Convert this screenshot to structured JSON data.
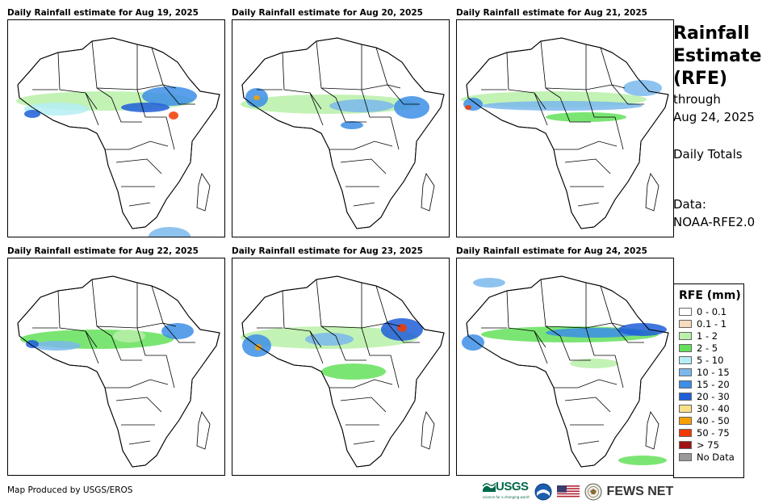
{
  "panels": [
    {
      "title": "Daily Rainfall estimate for Aug 19, 2025"
    },
    {
      "title": "Daily Rainfall estimate for Aug 20, 2025"
    },
    {
      "title": "Daily Rainfall estimate for Aug 21, 2025"
    },
    {
      "title": "Daily Rainfall estimate for Aug 22, 2025"
    },
    {
      "title": "Daily Rainfall estimate for Aug 23, 2025"
    },
    {
      "title": "Daily Rainfall estimate for Aug 24, 2025"
    }
  ],
  "sidebar": {
    "title_line1": "Rainfall",
    "title_line2": "Estimate",
    "title_line3": "(RFE)",
    "through": "through",
    "date": "Aug 24, 2025",
    "totals": "Daily Totals",
    "data_label": "Data:",
    "data_source": "NOAA-RFE2.0"
  },
  "legend": {
    "title": "RFE (mm)",
    "items": [
      {
        "label": "0 - 0.1",
        "color": "#ffffff"
      },
      {
        "label": "0.1 - 1",
        "color": "#f5dcc0"
      },
      {
        "label": "1 - 2",
        "color": "#b8f0a8"
      },
      {
        "label": "2 - 5",
        "color": "#64e05a"
      },
      {
        "label": "5 - 10",
        "color": "#b4eef4"
      },
      {
        "label": "10 - 15",
        "color": "#7ab8ec"
      },
      {
        "label": "15 - 20",
        "color": "#3c8ee6"
      },
      {
        "label": "20 - 30",
        "color": "#1e5ed8"
      },
      {
        "label": "30 - 40",
        "color": "#fbe08a"
      },
      {
        "label": "40 - 50",
        "color": "#f7a100"
      },
      {
        "label": "50 - 75",
        "color": "#f23a00"
      },
      {
        "label": "> 75",
        "color": "#a11212"
      },
      {
        "label": "No Data",
        "color": "#999999"
      }
    ]
  },
  "footer": {
    "credit": "Map Produced by USGS/EROS"
  },
  "logos": {
    "usgs": "USGS",
    "usgs_tagline": "science for a changing world",
    "fews": "FEWS NET"
  }
}
